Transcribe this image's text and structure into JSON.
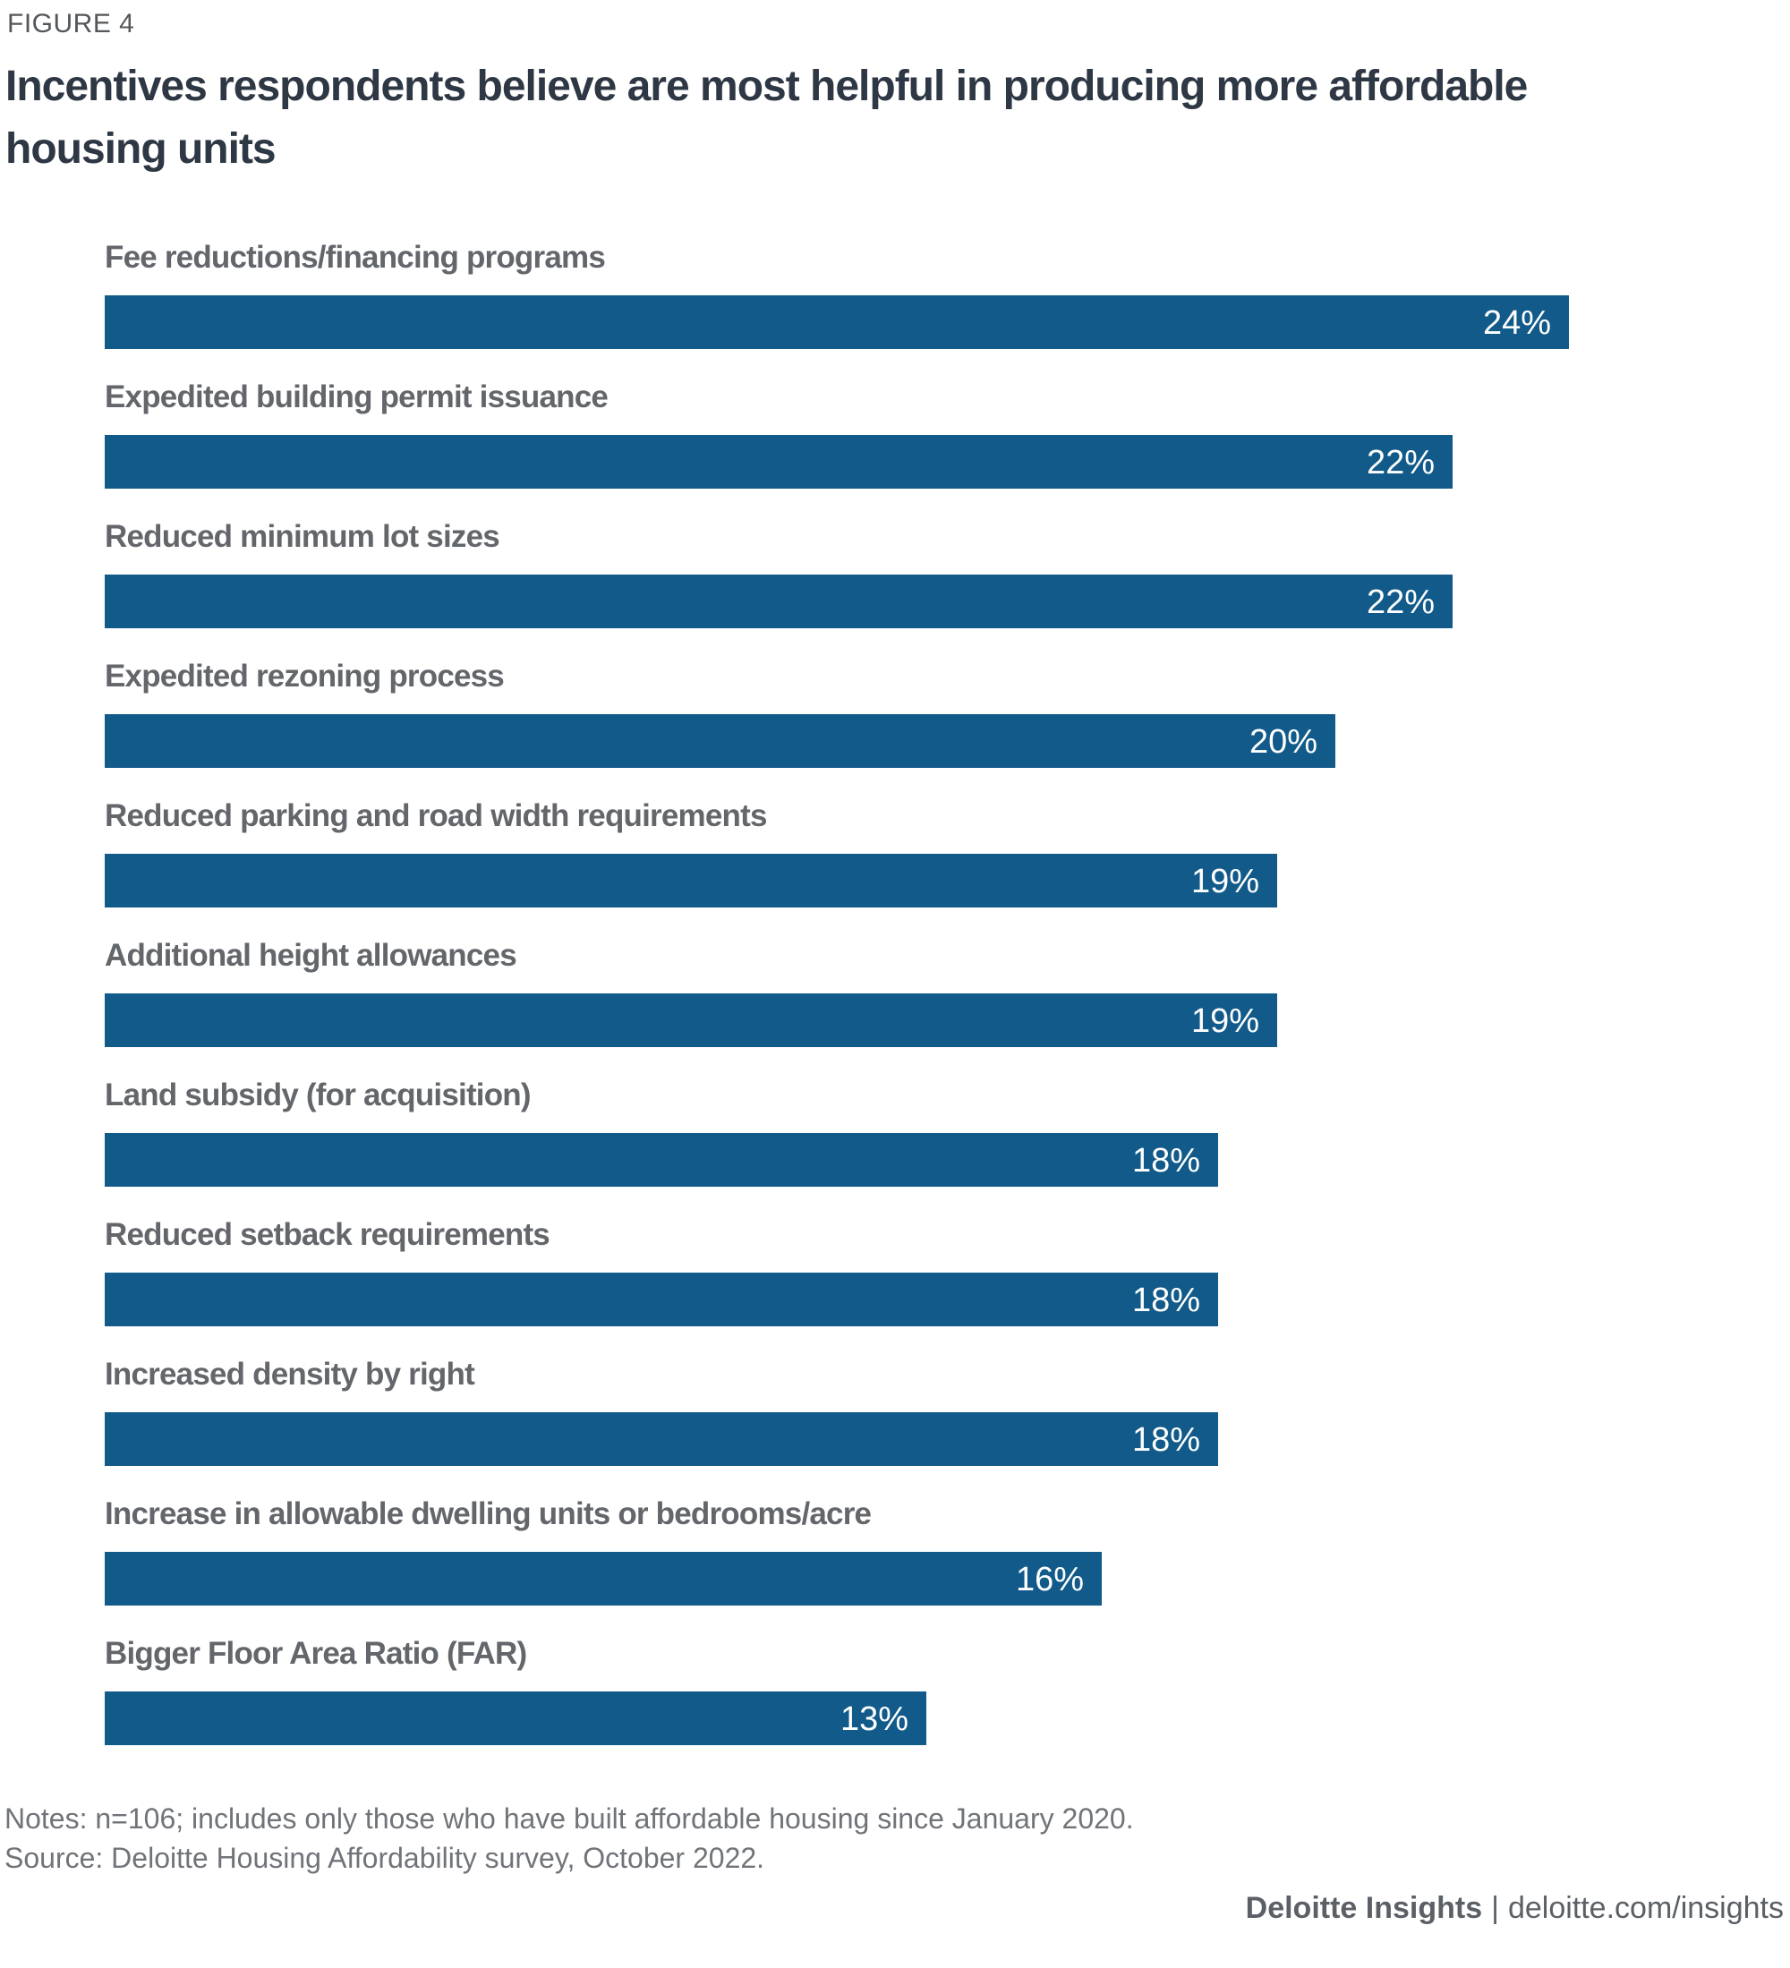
{
  "figure_label": "FIGURE 4",
  "title_lines": [
    "Incentives respondents believe are most helpful in producing more affordable",
    "housing units"
  ],
  "chart_data": {
    "type": "bar",
    "orientation": "horizontal",
    "title": "Incentives respondents believe are most helpful in producing more affordable housing units",
    "categories": [
      "Fee reductions/financing programs",
      "Expedited building permit issuance",
      "Reduced minimum lot sizes",
      "Expedited rezoning process",
      "Reduced parking and road width requirements",
      "Additional height allowances",
      "Land subsidy (for acquisition)",
      "Reduced setback requirements",
      "Increased density by right",
      "Increase in allowable dwelling units or bedrooms/acre",
      "Bigger Floor Area Ratio (FAR)"
    ],
    "values": [
      24,
      22,
      22,
      20,
      19,
      19,
      18,
      18,
      18,
      16,
      13
    ],
    "value_labels": [
      "24%",
      "22%",
      "22%",
      "20%",
      "19%",
      "19%",
      "18%",
      "18%",
      "18%",
      "16%",
      "13%"
    ],
    "value_suffix": "%",
    "xlim": [
      0,
      24
    ],
    "grid": false,
    "legend": "none",
    "bar_color": "#115A89",
    "category_label_color": "#63666A",
    "value_label_color": "#FFFFFF"
  },
  "notes": "Notes: n=106; includes only those who have built affordable housing since January 2020.",
  "source": "Source: Deloitte Housing Affordability survey, October 2022.",
  "footer": {
    "brand": "Deloitte Insights",
    "separator": "|",
    "link": "deloitte.com/insights"
  }
}
